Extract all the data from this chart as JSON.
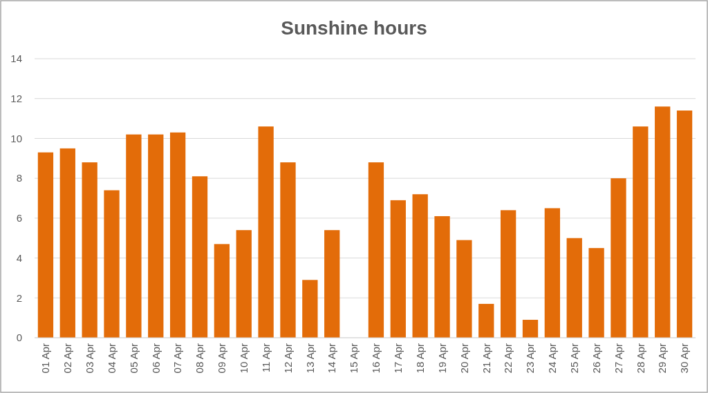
{
  "chart_data": {
    "type": "bar",
    "title": "Sunshine hours",
    "categories": [
      "01 Apr",
      "02 Apr",
      "03 Apr",
      "04 Apr",
      "05 Apr",
      "06 Apr",
      "07 Apr",
      "08 Apr",
      "09 Apr",
      "10 Apr",
      "11 Apr",
      "12 Apr",
      "13 Apr",
      "14 Apr",
      "15 Apr",
      "16 Apr",
      "17 Apr",
      "18 Apr",
      "19 Apr",
      "20 Apr",
      "21 Apr",
      "22 Apr",
      "23 Apr",
      "24 Apr",
      "25 Apr",
      "26 Apr",
      "27 Apr",
      "28 Apr",
      "29 Apr",
      "30 Apr"
    ],
    "values": [
      9.3,
      9.5,
      8.8,
      7.4,
      10.2,
      10.2,
      10.3,
      8.1,
      4.7,
      5.4,
      10.6,
      8.8,
      2.9,
      5.4,
      0,
      8.8,
      6.9,
      7.2,
      6.1,
      4.9,
      1.7,
      6.4,
      0.9,
      6.5,
      5.0,
      4.5,
      8.0,
      10.6,
      11.6,
      11.4
    ],
    "color": "#e36c09",
    "ylim": [
      0,
      14
    ],
    "yticks": [
      0,
      2,
      4,
      6,
      8,
      10,
      12,
      14
    ],
    "grid": "y"
  }
}
